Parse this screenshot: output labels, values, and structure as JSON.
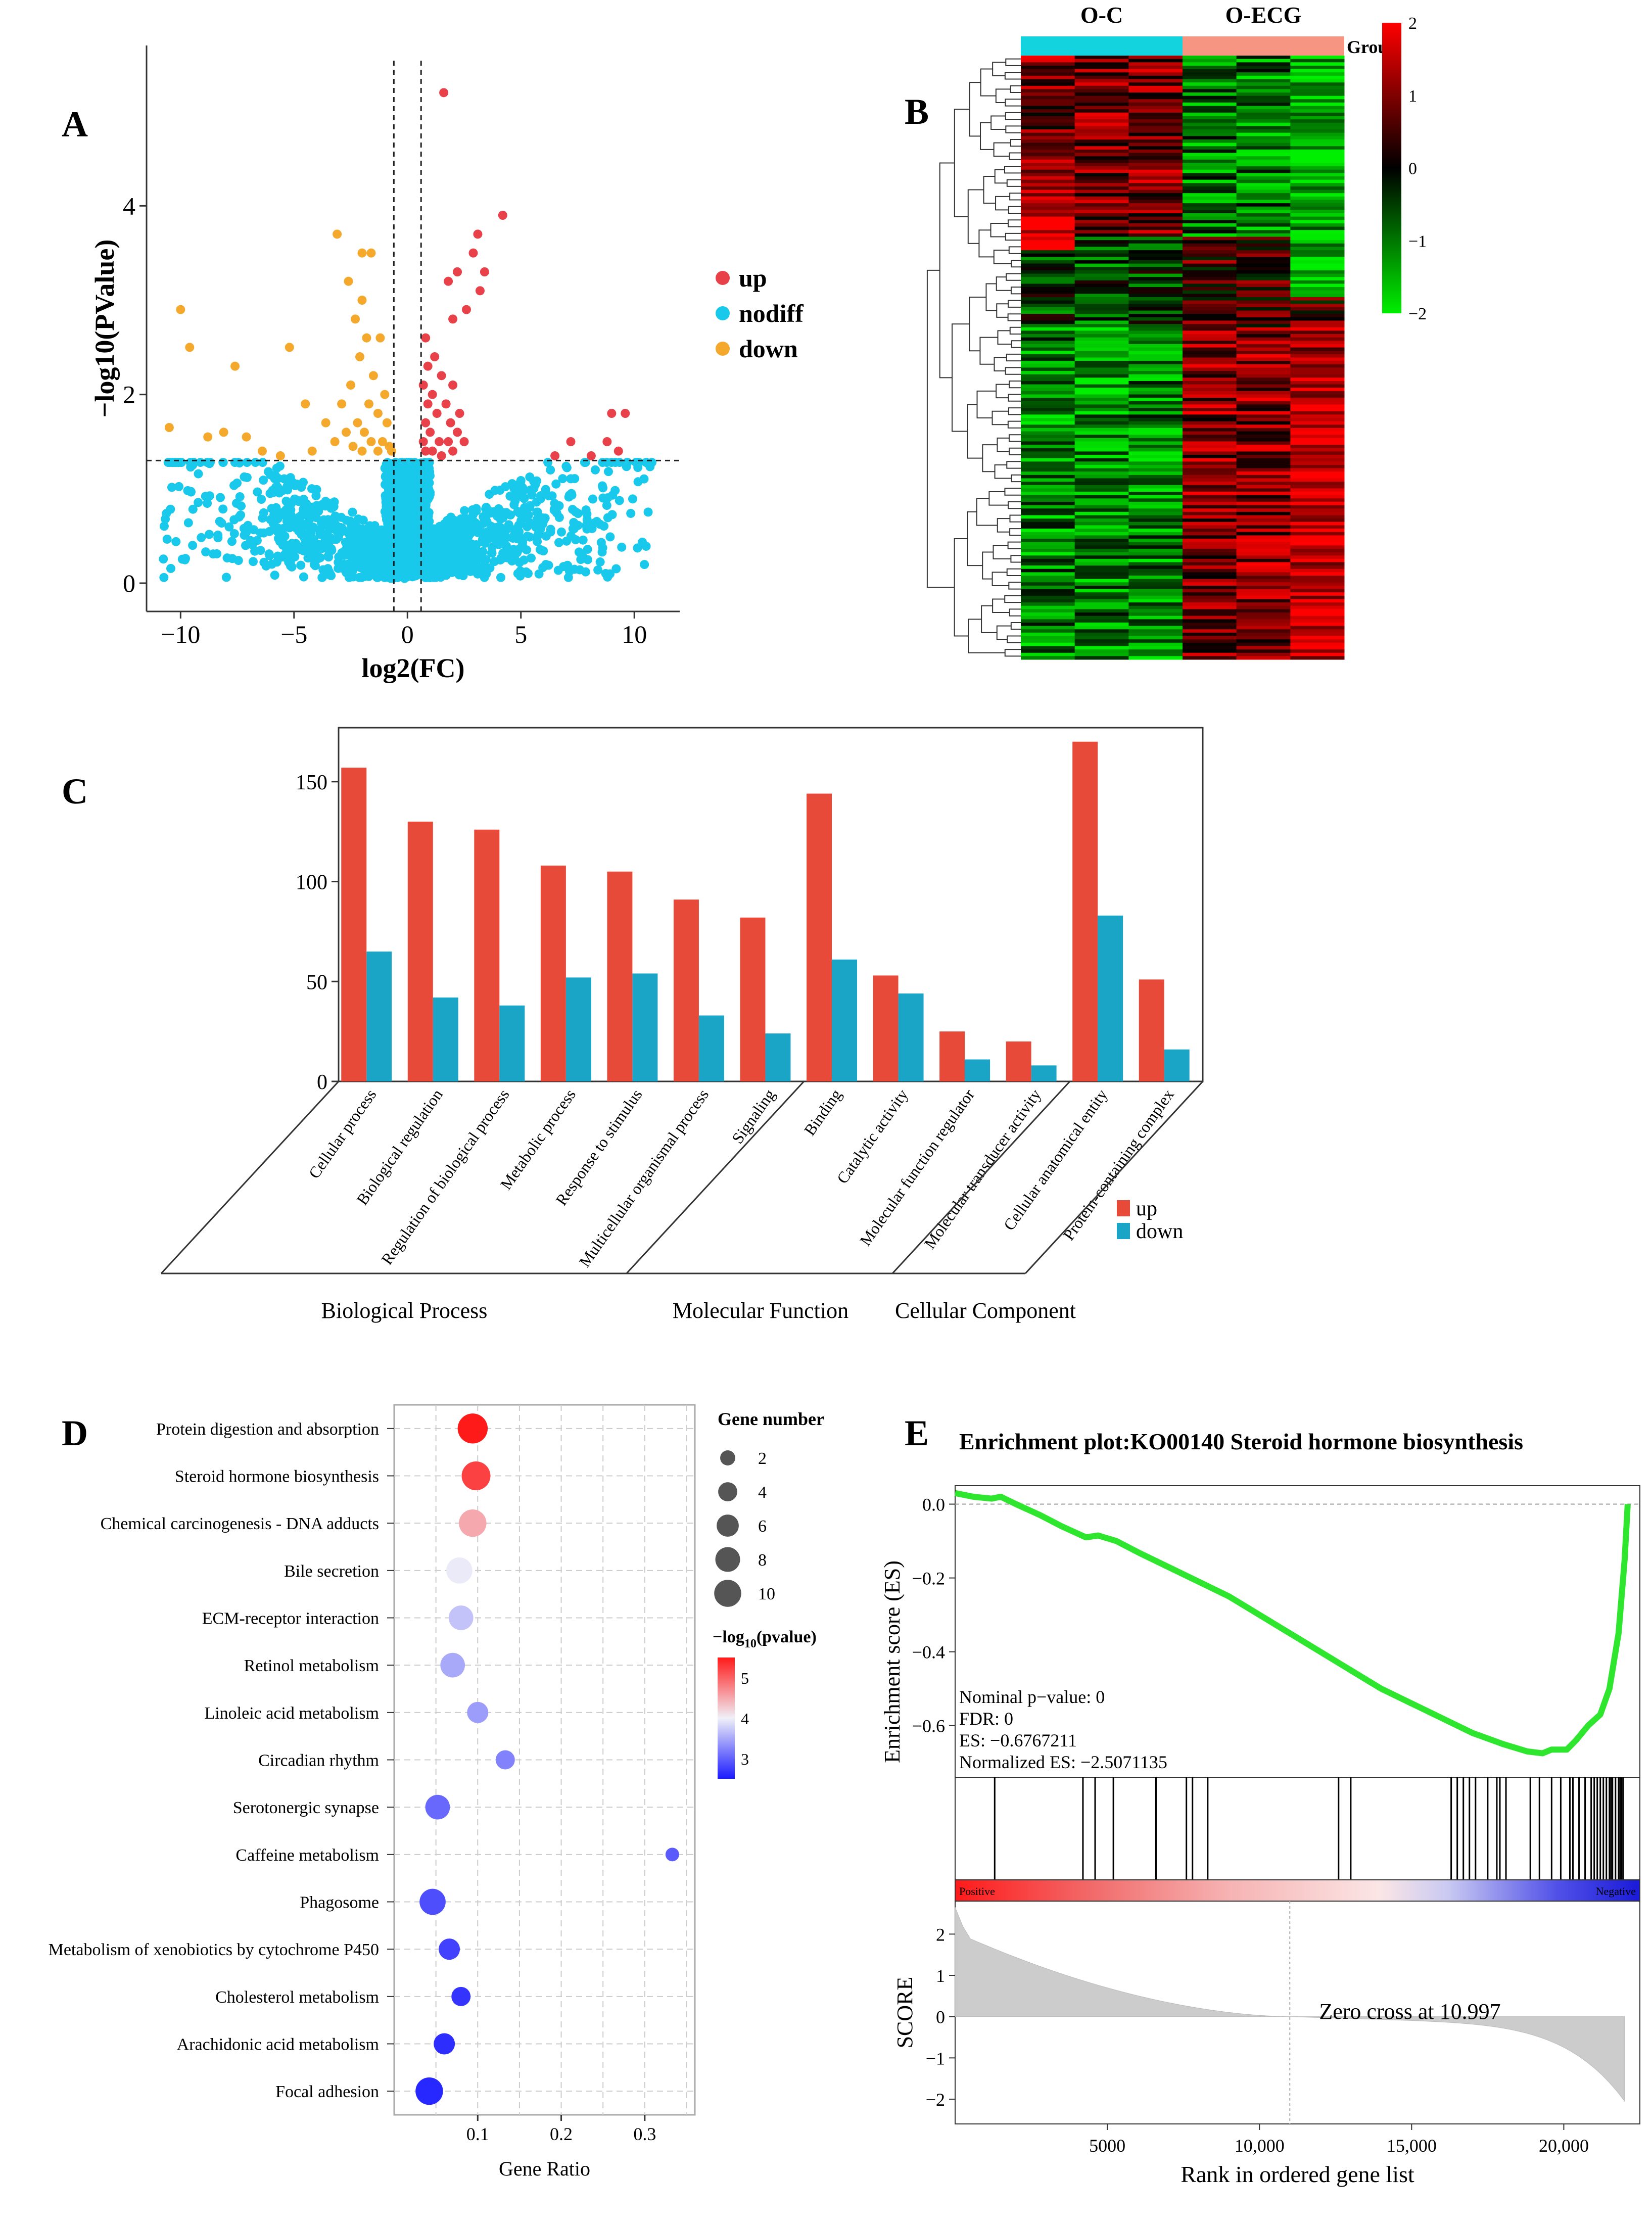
{
  "panel_labels": {
    "a": "A",
    "b": "B",
    "c": "C",
    "d": "D",
    "e": "E"
  },
  "colors": {
    "up": "#e8414a",
    "nodiff": "#18c9ec",
    "down": "#f4a82c",
    "bar_up": "#e84a3a",
    "bar_down": "#1aa5c6",
    "gsea_line": "#2ee62e",
    "heat_high": "#ff0000",
    "heat_mid": "#000000",
    "heat_low": "#00ee00",
    "group_oc": "#13d3df",
    "group_oecg": "#f79583"
  },
  "chart_data": [
    {
      "id": "A",
      "type": "scatter",
      "title": "",
      "xlabel": "log2(FC)",
      "ylabel": "-log10(PValue)",
      "xlim": [
        -11.5,
        12
      ],
      "ylim": [
        -0.3,
        5.7
      ],
      "xticks": [
        -10,
        -5,
        0,
        5,
        10
      ],
      "yticks": [
        0,
        2,
        4
      ],
      "fc_threshold": 0.6,
      "p_threshold": 1.3,
      "legend": [
        {
          "key": "up",
          "label": "up"
        },
        {
          "key": "nodiff",
          "label": "nodiff"
        },
        {
          "key": "down",
          "label": "down"
        }
      ],
      "up_points": [
        [
          1.6,
          5.2
        ],
        [
          4.2,
          3.9
        ],
        [
          3.1,
          3.7
        ],
        [
          2.9,
          3.5
        ],
        [
          3.4,
          3.3
        ],
        [
          1.8,
          3.2
        ],
        [
          2.2,
          3.3
        ],
        [
          3.2,
          3.1
        ],
        [
          2.6,
          2.9
        ],
        [
          2.0,
          2.8
        ],
        [
          0.8,
          2.6
        ],
        [
          1.2,
          2.4
        ],
        [
          0.9,
          2.3
        ],
        [
          1.5,
          2.2
        ],
        [
          0.7,
          2.1
        ],
        [
          2.0,
          2.1
        ],
        [
          1.1,
          2.0
        ],
        [
          1.7,
          1.9
        ],
        [
          0.9,
          1.9
        ],
        [
          2.3,
          1.8
        ],
        [
          1.3,
          1.8
        ],
        [
          0.8,
          1.7
        ],
        [
          1.9,
          1.7
        ],
        [
          1.0,
          1.6
        ],
        [
          2.2,
          1.6
        ],
        [
          1.4,
          1.5
        ],
        [
          0.7,
          1.5
        ],
        [
          1.8,
          1.5
        ],
        [
          2.5,
          1.5
        ],
        [
          1.1,
          1.4
        ],
        [
          2.0,
          1.4
        ],
        [
          0.8,
          1.4
        ],
        [
          1.5,
          1.35
        ],
        [
          9.0,
          1.8
        ],
        [
          9.6,
          1.8
        ],
        [
          8.8,
          1.5
        ],
        [
          7.2,
          1.5
        ],
        [
          9.3,
          1.4
        ],
        [
          6.5,
          1.35
        ],
        [
          8.1,
          1.35
        ]
      ],
      "down_points": [
        [
          -10.0,
          2.9
        ],
        [
          -9.6,
          2.5
        ],
        [
          -7.6,
          2.3
        ],
        [
          -5.2,
          2.5
        ],
        [
          -3.1,
          3.7
        ],
        [
          -2.0,
          3.5
        ],
        [
          -1.6,
          3.5
        ],
        [
          -2.6,
          3.2
        ],
        [
          -2.0,
          3.0
        ],
        [
          -2.3,
          2.8
        ],
        [
          -1.8,
          2.6
        ],
        [
          -1.2,
          2.6
        ],
        [
          -2.1,
          2.4
        ],
        [
          -1.5,
          2.2
        ],
        [
          -2.5,
          2.1
        ],
        [
          -1.0,
          2.0
        ],
        [
          -2.9,
          1.9
        ],
        [
          -1.7,
          1.9
        ],
        [
          -4.5,
          1.9
        ],
        [
          -1.3,
          1.8
        ],
        [
          -2.2,
          1.7
        ],
        [
          -3.6,
          1.7
        ],
        [
          -0.9,
          1.7
        ],
        [
          -1.9,
          1.6
        ],
        [
          -2.7,
          1.6
        ],
        [
          -1.1,
          1.5
        ],
        [
          -3.2,
          1.5
        ],
        [
          -1.6,
          1.5
        ],
        [
          -0.8,
          1.45
        ],
        [
          -2.4,
          1.45
        ],
        [
          -1.3,
          1.4
        ],
        [
          -2.0,
          1.4
        ],
        [
          -0.7,
          1.4
        ],
        [
          -10.5,
          1.65
        ],
        [
          -8.1,
          1.6
        ],
        [
          -8.8,
          1.55
        ],
        [
          -7.1,
          1.55
        ],
        [
          -6.4,
          1.4
        ],
        [
          -4.2,
          1.4
        ],
        [
          -5.6,
          1.35
        ]
      ],
      "nodiff_count": 2200
    },
    {
      "id": "B",
      "type": "heatmap",
      "groups": [
        {
          "name": "O-C",
          "columns": 3,
          "color_key": "group_oc"
        },
        {
          "name": "O-ECG",
          "columns": 3,
          "color_key": "group_oecg"
        }
      ],
      "legend_title": "Group",
      "colorbar_ticks": [
        "2",
        "1",
        "0",
        "−1",
        "−2"
      ],
      "colorbar_range": [
        -2,
        2
      ],
      "rows": 180
    },
    {
      "id": "C",
      "type": "bar",
      "categories": [
        "Cellular process",
        "Biological regulation",
        "Regulation of biological process",
        "Metabolic process",
        "Response to stimulus",
        "Multicellular organismal process",
        "Signaling",
        "Binding",
        "Catalytic activity",
        "Molecular function regulator",
        "Molecular transducer activity",
        "Cellular anatomical entity",
        "Protein-containing complex"
      ],
      "series": [
        {
          "name": "up",
          "values": [
            157,
            130,
            126,
            108,
            105,
            91,
            82,
            144,
            53,
            25,
            20,
            170,
            51
          ]
        },
        {
          "name": "down",
          "values": [
            65,
            42,
            38,
            52,
            54,
            33,
            24,
            61,
            44,
            11,
            8,
            83,
            16
          ]
        }
      ],
      "ylim": [
        0,
        177
      ],
      "yticks": [
        0,
        50,
        100,
        150
      ],
      "groups": [
        {
          "label": "Biological Process",
          "span": [
            0,
            6
          ]
        },
        {
          "label": "Molecular Function",
          "span": [
            7,
            10
          ]
        },
        {
          "label": "Cellular Component",
          "span": [
            11,
            12
          ]
        }
      ]
    },
    {
      "id": "D",
      "type": "scatter",
      "xlabel": "Gene Ratio",
      "xlim": [
        0,
        0.36
      ],
      "xticks": [
        0.1,
        0.2,
        0.3
      ],
      "size_legend_title": "Gene number",
      "size_legend": [
        2,
        4,
        6,
        8,
        10
      ],
      "color_legend_title": "−log",
      "color_legend_sub": "10",
      "color_legend_tail": "(pvalue)",
      "color_legend_ticks": [
        3,
        4,
        5
      ],
      "color_range": [
        2.3,
        5.6
      ],
      "pathways": [
        {
          "name": "Protein digestion and absorption",
          "ratio": 0.094,
          "genes": 10,
          "logp": 5.6
        },
        {
          "name": "Steroid hormone biosynthesis",
          "ratio": 0.098,
          "genes": 9,
          "logp": 5.3
        },
        {
          "name": "Chemical carcinogenesis - DNA adducts",
          "ratio": 0.094,
          "genes": 8,
          "logp": 4.5
        },
        {
          "name": "Bile secretion",
          "ratio": 0.078,
          "genes": 7,
          "logp": 3.9
        },
        {
          "name": "ECM-receptor interaction",
          "ratio": 0.08,
          "genes": 6,
          "logp": 3.6
        },
        {
          "name": "Retinol metabolism",
          "ratio": 0.07,
          "genes": 6,
          "logp": 3.4
        },
        {
          "name": "Linoleic acid metabolism",
          "ratio": 0.1,
          "genes": 4,
          "logp": 3.3
        },
        {
          "name": "Circadian rhythm",
          "ratio": 0.133,
          "genes": 3,
          "logp": 3.1
        },
        {
          "name": "Serotonergic synapse",
          "ratio": 0.052,
          "genes": 6,
          "logp": 2.9
        },
        {
          "name": "Caffeine metabolism",
          "ratio": 0.333,
          "genes": 1,
          "logp": 2.8
        },
        {
          "name": "Phagosome",
          "ratio": 0.046,
          "genes": 7,
          "logp": 2.7
        },
        {
          "name": "Metabolism of xenobiotics by cytochrome P450",
          "ratio": 0.066,
          "genes": 4,
          "logp": 2.6
        },
        {
          "name": "Cholesterol metabolism",
          "ratio": 0.08,
          "genes": 3,
          "logp": 2.5
        },
        {
          "name": "Arachidonic acid metabolism",
          "ratio": 0.06,
          "genes": 4,
          "logp": 2.45
        },
        {
          "name": "Focal adhesion",
          "ratio": 0.042,
          "genes": 8,
          "logp": 2.4
        }
      ]
    },
    {
      "id": "E",
      "type": "line",
      "title": "Enrichment plot:KO00140 Steroid hormone biosynthesis",
      "ylabel": "Enrichment score (ES)",
      "score_label": "SCORE",
      "xlabel": "Rank in ordered gene list",
      "xlim": [
        0,
        22500
      ],
      "xticks": [
        5000,
        10000,
        15000,
        20000
      ],
      "xtick_labels": [
        "5000",
        "10,000",
        "15,000",
        "20,000"
      ],
      "ylim": [
        -0.74,
        0.05
      ],
      "yticks": [
        0.0,
        -0.2,
        -0.4,
        -0.6
      ],
      "score_ylim": [
        -2.6,
        2.8
      ],
      "score_yticks": [
        2,
        1,
        0,
        -1,
        -2
      ],
      "stats": [
        "Nominal p−value: 0",
        "FDR: 0",
        "ES: −0.6767211",
        "Normalized ES: −2.5071135"
      ],
      "zero_cross_text": "Zero cross at 10.997",
      "zero_cross": 10997,
      "positive_label": "Positive",
      "negative_label": "Negative",
      "es_curve": [
        [
          0,
          0.03
        ],
        [
          600,
          0.02
        ],
        [
          1200,
          0.015
        ],
        [
          1500,
          0.02
        ],
        [
          2000,
          0.0
        ],
        [
          2800,
          -0.03
        ],
        [
          3500,
          -0.06
        ],
        [
          4300,
          -0.09
        ],
        [
          4700,
          -0.085
        ],
        [
          5300,
          -0.1
        ],
        [
          6000,
          -0.13
        ],
        [
          7000,
          -0.17
        ],
        [
          8000,
          -0.21
        ],
        [
          9000,
          -0.25
        ],
        [
          10000,
          -0.3
        ],
        [
          11000,
          -0.35
        ],
        [
          12000,
          -0.4
        ],
        [
          13000,
          -0.45
        ],
        [
          14000,
          -0.5
        ],
        [
          15000,
          -0.54
        ],
        [
          16000,
          -0.58
        ],
        [
          17000,
          -0.62
        ],
        [
          18000,
          -0.65
        ],
        [
          18800,
          -0.67
        ],
        [
          19300,
          -0.675
        ],
        [
          19600,
          -0.665
        ],
        [
          20100,
          -0.665
        ],
        [
          20400,
          -0.64
        ],
        [
          20800,
          -0.6
        ],
        [
          21200,
          -0.57
        ],
        [
          21500,
          -0.5
        ],
        [
          21800,
          -0.35
        ],
        [
          22000,
          -0.15
        ],
        [
          22100,
          0.0
        ]
      ]
    }
  ]
}
